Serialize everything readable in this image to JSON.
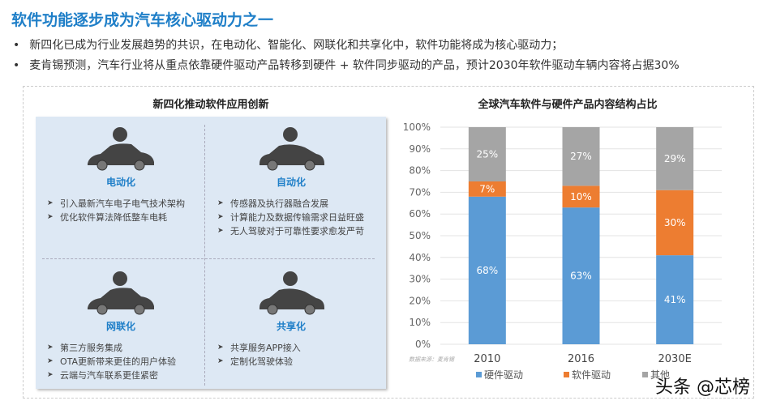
{
  "title": "软件功能逐步成为汽车核心驱动力之一",
  "bullets": [
    "新四化已成为行业发展趋势的共识，在电动化、智能化、网联化和共享化中，软件功能将成为核心驱动力；",
    "麦肯锡预测，汽车行业将从重点依靠硬件驱动产品转移到硬件 + 软件同步驱动的产品，预计2030年软件驱动车辆内容将占据30%"
  ],
  "left_panel": {
    "title": "新四化推动软件应用创新",
    "quadrants": [
      {
        "name": "电动化",
        "icon": "ev-charging-car-icon",
        "items": [
          "引入最新汽车电子电气技术架构",
          "优化软件算法降低整车电耗"
        ]
      },
      {
        "name": "自动化",
        "icon": "autonomous-car-icon",
        "items": [
          "传感器及执行器融合发展",
          "计算能力及数据传输需求日益旺盛",
          "无人驾驶对于可靠性要求愈发严苛"
        ]
      },
      {
        "name": "网联化",
        "icon": "connected-car-wifi-icon",
        "items": [
          "第三方服务集成",
          "OTA更新带来更佳的用户体验",
          "云端与汽车联系更佳紧密"
        ]
      },
      {
        "name": "共享化",
        "icon": "shared-car-icon",
        "items": [
          "共享服务APP接入",
          "定制化驾驶体验"
        ]
      }
    ]
  },
  "chart_data": {
    "type": "bar",
    "stacked": true,
    "title": "全球汽车软件与硬件产品内容结构占比",
    "categories": [
      "2010",
      "2016",
      "2030E"
    ],
    "series": [
      {
        "name": "硬件驱动",
        "values": [
          68,
          63,
          41
        ],
        "labels": [
          "68%",
          "63%",
          "41%"
        ],
        "color": "#5b9bd5"
      },
      {
        "name": "软件驱动",
        "values": [
          7,
          10,
          30
        ],
        "labels": [
          "7%",
          "10%",
          "30%"
        ],
        "color": "#ed7d31"
      },
      {
        "name": "其他",
        "values": [
          25,
          27,
          29
        ],
        "labels": [
          "25%",
          "27%",
          "29%"
        ],
        "color": "#a5a5a5"
      }
    ],
    "yticks": [
      "0%",
      "10%",
      "20%",
      "30%",
      "40%",
      "50%",
      "60%",
      "70%",
      "80%",
      "90%",
      "100%"
    ],
    "ylim": [
      0,
      100
    ],
    "grid": true,
    "legend": "bottom",
    "source": "数据来源：麦肯锡"
  },
  "watermark": "头条 @芯榜"
}
